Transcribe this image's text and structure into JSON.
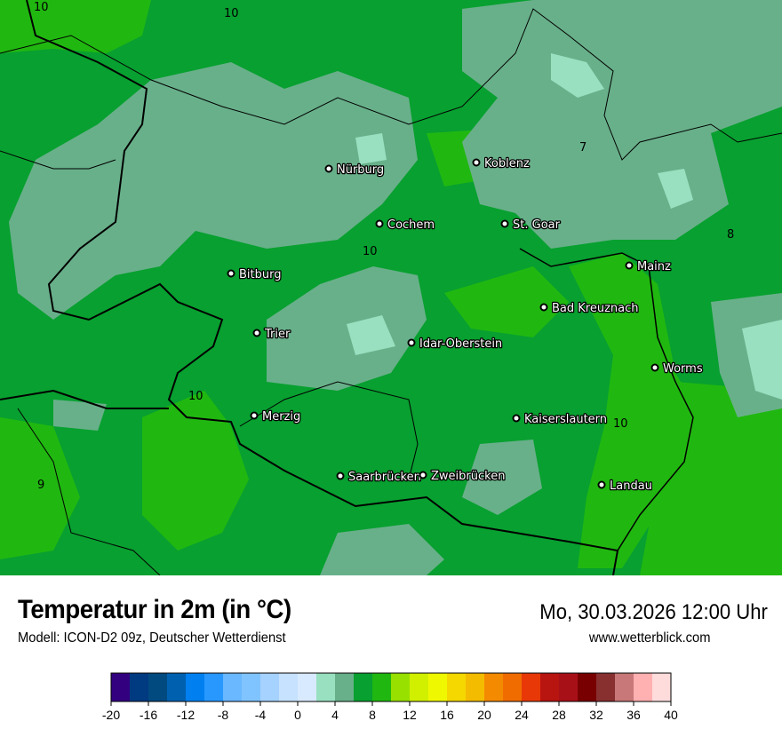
{
  "header": {
    "title": "Temperatur in 2m (in °C)",
    "subtitle": "Modell: ICON-D2 09z, Deutscher Wetterdienst",
    "datetime": "Mo, 30.03.2026 12:00 Uhr",
    "source": "www.wetterblick.com"
  },
  "map": {
    "background_color": "#08a030",
    "cities": [
      {
        "name": "Nürburg"
      },
      {
        "name": "Koblenz"
      },
      {
        "name": "Cochem"
      },
      {
        "name": "St. Goar"
      },
      {
        "name": "Mainz"
      },
      {
        "name": "Bitburg"
      },
      {
        "name": "Bad Kreuznach"
      },
      {
        "name": "Trier"
      },
      {
        "name": "Idar-Oberstein"
      },
      {
        "name": "Worms"
      },
      {
        "name": "Merzig"
      },
      {
        "name": "Kaiserslautern"
      },
      {
        "name": "Saarbrücken"
      },
      {
        "name": "Zweibrücken"
      },
      {
        "name": "Landau"
      }
    ],
    "isoline_labels": [
      "10",
      "10",
      "7",
      "8",
      "10",
      "10",
      "10",
      "9"
    ]
  },
  "legend": {
    "unit": "°C",
    "min": -20,
    "max": 40,
    "step": 2,
    "colors": [
      "#330080",
      "#003a80",
      "#004a80",
      "#0060b0",
      "#0080f0",
      "#2898ff",
      "#6ab8ff",
      "#80c4ff",
      "#a6d2ff",
      "#c6e2ff",
      "#d8eaff",
      "#98e0c0",
      "#68b08a",
      "#08a030",
      "#20b810",
      "#98e000",
      "#d0f000",
      "#f0f800",
      "#f4d800",
      "#f4bc00",
      "#f48a00",
      "#f06c00",
      "#e83808",
      "#b81410",
      "#a81018",
      "#780000",
      "#883030",
      "#c87878",
      "#ffb0b0",
      "#ffdcdc"
    ],
    "tick_labels": [
      "-20",
      "-16",
      "-12",
      "-8",
      "-4",
      "0",
      "4",
      "8",
      "12",
      "16",
      "20",
      "24",
      "28",
      "32",
      "36",
      "40"
    ]
  }
}
